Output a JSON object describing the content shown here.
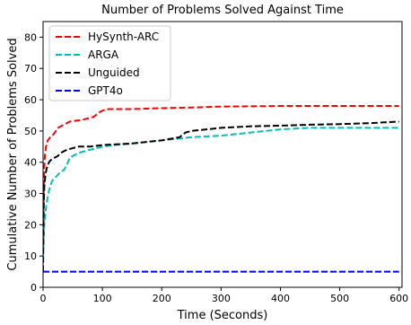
{
  "chart_data": {
    "type": "line",
    "title": "Number of Problems Solved Against Time",
    "xlabel": "Time (Seconds)",
    "ylabel": "Cumulative Number of Problems Solved",
    "xlim": [
      0,
      605
    ],
    "ylim": [
      0,
      85
    ],
    "xticks": [
      0,
      100,
      200,
      300,
      400,
      500,
      600
    ],
    "yticks": [
      0,
      10,
      20,
      30,
      40,
      50,
      60,
      70,
      80
    ],
    "grid": false,
    "legend_position": "top-left",
    "series": [
      {
        "name": "HySynth-ARC",
        "color": "#ff0000",
        "style": "dashed",
        "x": [
          0,
          1,
          2,
          3,
          5,
          8,
          12,
          18,
          25,
          35,
          45,
          55,
          65,
          75,
          85,
          95,
          100,
          110,
          150,
          200,
          250,
          300,
          350,
          400,
          450,
          500,
          550,
          600
        ],
        "y": [
          12,
          30,
          38,
          42,
          45,
          47,
          48,
          49,
          51,
          52,
          53,
          53.3,
          53.5,
          54,
          54.5,
          56,
          56.5,
          57,
          57,
          57.3,
          57.5,
          57.8,
          57.9,
          58,
          58,
          58,
          58,
          58
        ]
      },
      {
        "name": "ARGA",
        "color": "#00bfbf",
        "style": "dashed",
        "x": [
          0,
          2,
          4,
          6,
          8,
          10,
          12,
          15,
          20,
          25,
          30,
          35,
          40,
          45,
          50,
          60,
          70,
          80,
          90,
          100,
          120,
          150,
          200,
          250,
          300,
          350,
          400,
          450,
          500,
          550,
          600
        ],
        "y": [
          10,
          20,
          24,
          27,
          29,
          31,
          32,
          34,
          35,
          36,
          37,
          37.5,
          39,
          41.5,
          42,
          43,
          43.5,
          44,
          44.5,
          45,
          45.5,
          46,
          47,
          48,
          48.5,
          49.5,
          50.5,
          51,
          51,
          51,
          51
        ],
        "label": "ARGA"
      },
      {
        "name": "Unguided",
        "color": "#000000",
        "style": "dashed",
        "x": [
          0,
          1,
          2,
          4,
          6,
          8,
          10,
          12,
          15,
          20,
          25,
          30,
          35,
          40,
          50,
          60,
          80,
          100,
          150,
          200,
          230,
          240,
          250,
          300,
          350,
          400,
          450,
          500,
          550,
          600
        ],
        "y": [
          5,
          25,
          32,
          36,
          38,
          39,
          40,
          40.5,
          41,
          41.5,
          42,
          43,
          43.5,
          44,
          44.5,
          45,
          45,
          45.5,
          46,
          47,
          48,
          49.5,
          50,
          51,
          51.5,
          51.7,
          52,
          52.2,
          52.5,
          53
        ]
      },
      {
        "name": "GPT4o",
        "color": "#0000ff",
        "style": "dashed",
        "x": [
          0,
          600
        ],
        "y": [
          5,
          5
        ]
      }
    ]
  }
}
